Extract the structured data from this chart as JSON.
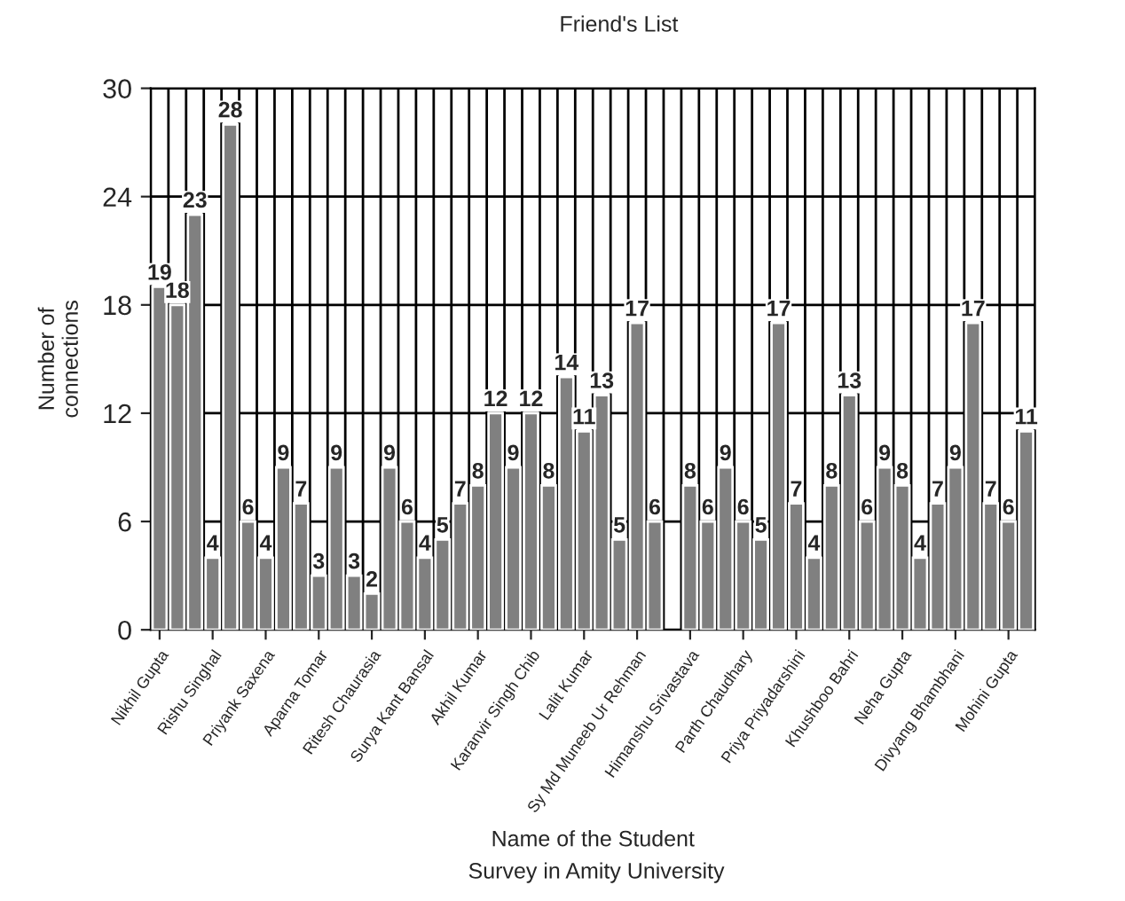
{
  "chart_data": {
    "type": "bar",
    "title": "Friend's List",
    "xlabel": "Name of the Student",
    "ylabel": "Number of\nconnections",
    "annotations": [
      "Survey in Amity University"
    ],
    "categories": [
      "Nikhil Gupta",
      null,
      null,
      "Rishu Singhal",
      null,
      null,
      "Priyank Saxena",
      null,
      null,
      "Aparna Tomar",
      null,
      null,
      "Ritesh Chaurasia",
      null,
      null,
      "Surya Kant Bansal",
      null,
      null,
      "Akhil Kumar",
      null,
      null,
      "Karanvir Singh Chib",
      null,
      null,
      "Lalit Kumar",
      null,
      null,
      "Sy Md Muneeb Ur Rehman",
      null,
      null,
      "Himanshu Srivastava",
      null,
      null,
      "Parth Chaudhary",
      null,
      null,
      "Priya Priyadarshini",
      null,
      null,
      "Khushboo Bahri",
      null,
      null,
      "Neha Gupta",
      null,
      null,
      "Divyang Bhambhani",
      null,
      null,
      "Mohini Gupta",
      null
    ],
    "values": [
      19,
      18,
      23,
      4,
      28,
      6,
      4,
      9,
      7,
      3,
      9,
      3,
      2,
      9,
      6,
      4,
      5,
      7,
      8,
      12,
      9,
      12,
      8,
      14,
      11,
      13,
      5,
      17,
      6,
      null,
      8,
      6,
      9,
      6,
      5,
      17,
      7,
      4,
      8,
      13,
      6,
      9,
      8,
      4,
      7,
      9,
      17,
      7,
      6,
      11
    ],
    "color": "#808080",
    "ylim": [
      0,
      30
    ],
    "yticks": [
      0,
      6,
      12,
      18,
      24,
      30
    ],
    "grid": true,
    "data_labels": true
  }
}
